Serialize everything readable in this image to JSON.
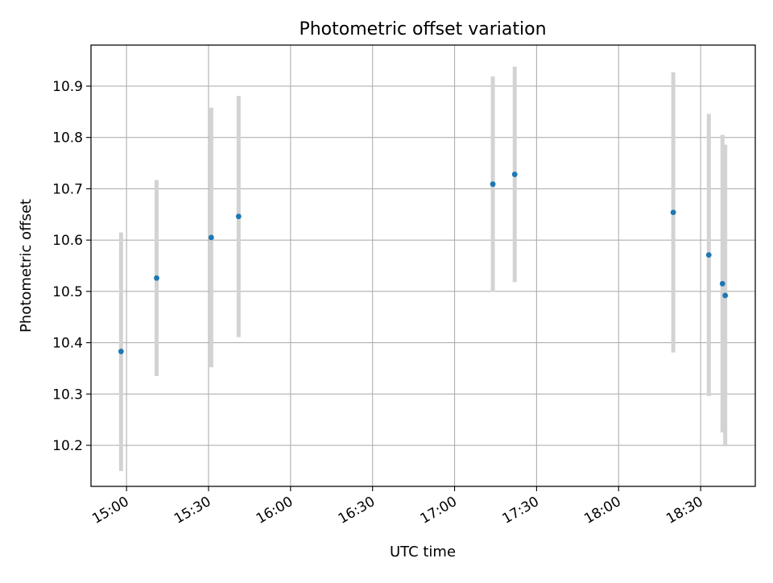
{
  "chart_data": {
    "type": "scatter",
    "title": "Photometric offset variation",
    "xlabel": "UTC time",
    "ylabel": "Photometric offset",
    "x_tick_labels": [
      "15:00",
      "15:30",
      "16:00",
      "16:30",
      "17:00",
      "17:30",
      "18:00",
      "18:30"
    ],
    "y_tick_labels": [
      "10.2",
      "10.3",
      "10.4",
      "10.5",
      "10.6",
      "10.7",
      "10.8",
      "10.9"
    ],
    "y_ticks": [
      10.2,
      10.3,
      10.4,
      10.5,
      10.6,
      10.7,
      10.8,
      10.9
    ],
    "x_range": [
      "14:47",
      "18:50"
    ],
    "ylim": [
      10.12,
      10.98
    ],
    "grid": true,
    "point_color": "#1f77b4",
    "errorbar_color": "#d3d3d3",
    "series": [
      {
        "points": [
          {
            "x": "14:58",
            "y": 10.383,
            "ymin": 10.15,
            "ymax": 10.615
          },
          {
            "x": "15:11",
            "y": 10.526,
            "ymin": 10.335,
            "ymax": 10.717
          },
          {
            "x": "15:31",
            "y": 10.605,
            "ymin": 10.352,
            "ymax": 10.858
          },
          {
            "x": "15:41",
            "y": 10.646,
            "ymin": 10.411,
            "ymax": 10.881
          },
          {
            "x": "17:14",
            "y": 10.709,
            "ymin": 10.499,
            "ymax": 10.919
          },
          {
            "x": "17:22",
            "y": 10.728,
            "ymin": 10.518,
            "ymax": 10.938
          },
          {
            "x": "18:20",
            "y": 10.654,
            "ymin": 10.381,
            "ymax": 10.927
          },
          {
            "x": "18:33",
            "y": 10.571,
            "ymin": 10.296,
            "ymax": 10.846
          },
          {
            "x": "18:38",
            "y": 10.515,
            "ymin": 10.225,
            "ymax": 10.805
          },
          {
            "x": "18:39",
            "y": 10.492,
            "ymin": 10.198,
            "ymax": 10.786
          }
        ]
      }
    ]
  }
}
